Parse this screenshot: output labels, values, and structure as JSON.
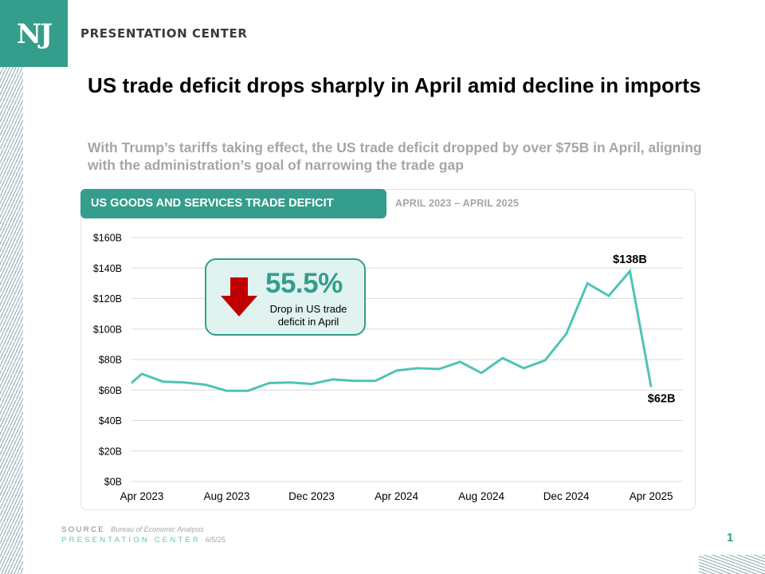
{
  "header": {
    "logo_text": "NJ",
    "brand": "PRESENTATION CENTER"
  },
  "title": "US trade deficit drops sharply in April amid decline in imports",
  "subtitle": "With Trump’s tariffs taking effect, the US trade deficit dropped by over $75B in April, aligning with the administration’s goal of narrowing the trade gap",
  "card": {
    "tab_label": "US GOODS AND SERVICES TRADE DEFICIT",
    "date_range": "APRIL 2023 – APRIL 2025"
  },
  "callout": {
    "percent": "55.5%",
    "description": "Drop in US trade deficit in April",
    "icon": "down-arrow-icon",
    "arrow_color": "#c00000"
  },
  "footer": {
    "source_label": "SOURCE",
    "source_value": "Bureau of Economic Analysis",
    "brand": "PRESENTATION CENTER",
    "date": "6/5/25",
    "page_number": "1"
  },
  "colors": {
    "accent": "#349d8b",
    "line": "#4ec4b4",
    "callout_bg": "#e0f3f0",
    "muted_text": "#a6a6a6",
    "gridline": "#d9d9d9"
  },
  "chart_data": {
    "type": "line",
    "title": "US GOODS AND SERVICES TRADE DEFICIT",
    "subtitle": "APRIL 2023 – APRIL 2025",
    "xlabel": "",
    "ylabel": "",
    "unit": "$B",
    "ylim": [
      0,
      160
    ],
    "yticks": [
      0,
      20,
      40,
      60,
      80,
      100,
      120,
      140,
      160
    ],
    "ytick_labels": [
      "$0B",
      "$20B",
      "$40B",
      "$60B",
      "$80B",
      "$100B",
      "$120B",
      "$140B",
      "$160B"
    ],
    "grid": true,
    "legend": "none",
    "x": [
      "Mar 2023",
      "Apr 2023",
      "May 2023",
      "Jun 2023",
      "Jul 2023",
      "Aug 2023",
      "Sep 2023",
      "Oct 2023",
      "Nov 2023",
      "Dec 2023",
      "Jan 2024",
      "Feb 2024",
      "Mar 2024",
      "Apr 2024",
      "May 2024",
      "Jun 2024",
      "Jul 2024",
      "Aug 2024",
      "Sep 2024",
      "Oct 2024",
      "Nov 2024",
      "Dec 2024",
      "Jan 2025",
      "Feb 2025",
      "Mar 2025",
      "Apr 2025"
    ],
    "xtick_labels": [
      "Apr 2023",
      "Aug 2023",
      "Dec 2023",
      "Apr 2024",
      "Aug 2024",
      "Dec 2024",
      "Apr 2025"
    ],
    "series": [
      {
        "name": "US goods and services trade deficit",
        "values": [
          58.5,
          70.6,
          65.5,
          65.0,
          63.5,
          59.5,
          59.5,
          64.6,
          65.0,
          64.0,
          67.0,
          66.0,
          66.0,
          72.8,
          74.3,
          73.8,
          78.5,
          71.2,
          81.0,
          74.3,
          79.5,
          96.8,
          130.0,
          121.8,
          138.0,
          62.0
        ]
      }
    ],
    "annotations": [
      {
        "x": "Mar 2025",
        "value": 138,
        "label": "$138B"
      },
      {
        "x": "Apr 2025",
        "value": 62,
        "label": "$62B"
      }
    ]
  }
}
